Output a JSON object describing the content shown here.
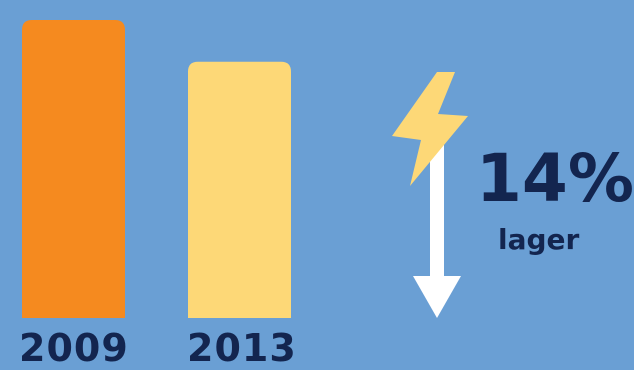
{
  "chart_data": {
    "type": "bar",
    "categories": [
      "2009",
      "2013"
    ],
    "values": [
      100,
      86
    ],
    "colors": [
      "#f58a1f",
      "#fdd877"
    ],
    "annotation": {
      "change_value": "14%",
      "change_label": "lager",
      "direction": "down"
    },
    "icon": "lightning-bolt-icon",
    "arrow": "down-arrow-icon"
  },
  "colors": {
    "background": "#6a9fd4",
    "text": "#13254f",
    "arrow": "#ffffff",
    "bolt": "#fdd877"
  }
}
